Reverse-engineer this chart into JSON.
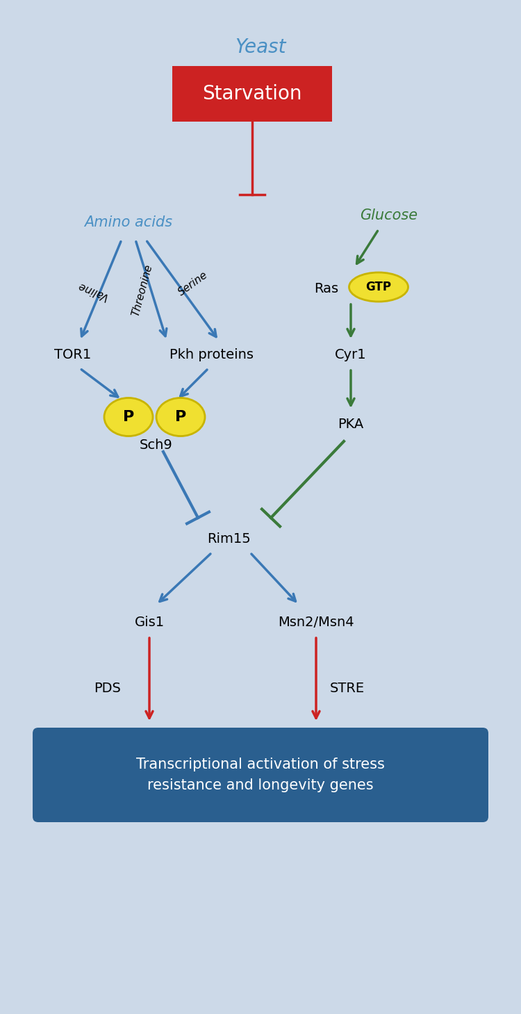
{
  "fig_width": 7.5,
  "fig_height": 14.59,
  "bg_color": "#ccd9e8",
  "title": "Yeast",
  "title_color": "#4a90c4",
  "blue": "#3a78b5",
  "green": "#3a7a3a",
  "red": "#cc2222",
  "starvation_color": "#cc2222",
  "starvation_text": "Starvation",
  "amino_acids_text": "Amino acids",
  "amino_acids_color": "#4a90c4",
  "glucose_text": "Glucose",
  "glucose_color": "#3a7a3a",
  "bottom_box_color": "#2a5f8f",
  "bottom_box_text": "Transcriptional activation of stress\nresistance and longevity genes"
}
